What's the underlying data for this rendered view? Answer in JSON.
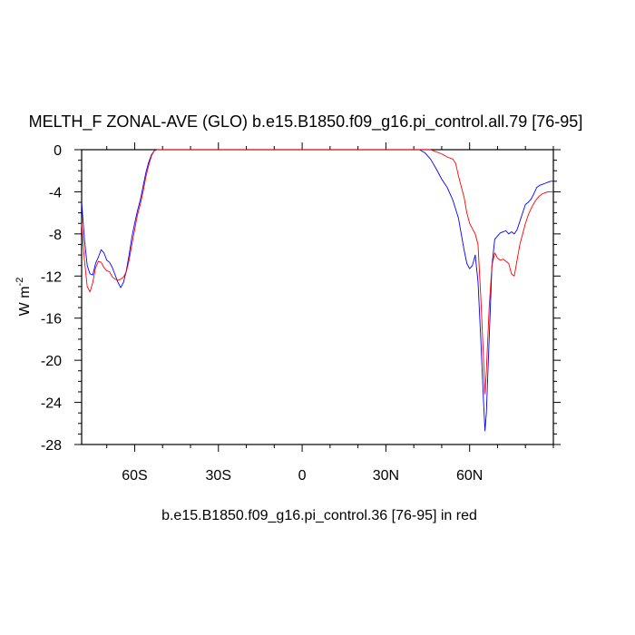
{
  "chart_data": {
    "type": "line",
    "title": "MELTH_F ZONAL-AVE (GLO) b.e15.B1850.f09_g16.pi_control.all.79 [76-95]",
    "xlabel": "b.e15.B1850.f09_g16.pi_control.36 [76-95] in red",
    "ylabel": "W m",
    "ylabel_superscript": "-2",
    "xlim": [
      -79,
      90
    ],
    "ylim": [
      -28,
      0
    ],
    "xticks": [
      {
        "value": -60,
        "label": "60S"
      },
      {
        "value": -30,
        "label": "30S"
      },
      {
        "value": 0,
        "label": "0"
      },
      {
        "value": 30,
        "label": "30N"
      },
      {
        "value": 60,
        "label": "60N"
      }
    ],
    "yticks": [
      {
        "value": 0,
        "label": "0"
      },
      {
        "value": -4,
        "label": "-4"
      },
      {
        "value": -8,
        "label": "-8"
      },
      {
        "value": -12,
        "label": "-12"
      },
      {
        "value": -16,
        "label": "-16"
      },
      {
        "value": -20,
        "label": "-20"
      },
      {
        "value": -24,
        "label": "-24"
      },
      {
        "value": -28,
        "label": "-28"
      }
    ],
    "grid": false,
    "series": [
      {
        "color": "#0000ff",
        "points": [
          [
            -79,
            -5.0
          ],
          [
            -78,
            -8.5
          ],
          [
            -77,
            -11.0
          ],
          [
            -76,
            -11.8
          ],
          [
            -75,
            -11.9
          ],
          [
            -74,
            -10.8
          ],
          [
            -73,
            -10.2
          ],
          [
            -72,
            -9.5
          ],
          [
            -71,
            -9.8
          ],
          [
            -70,
            -10.5
          ],
          [
            -69,
            -10.7
          ],
          [
            -68,
            -11.2
          ],
          [
            -67,
            -11.9
          ],
          [
            -66,
            -12.6
          ],
          [
            -65,
            -13.1
          ],
          [
            -64,
            -12.6
          ],
          [
            -63,
            -11.5
          ],
          [
            -62,
            -10.0
          ],
          [
            -61,
            -8.3
          ],
          [
            -60,
            -7.0
          ],
          [
            -59,
            -5.8
          ],
          [
            -58,
            -4.8
          ],
          [
            -57,
            -3.5
          ],
          [
            -56,
            -2.2
          ],
          [
            -55,
            -1.2
          ],
          [
            -54,
            -0.5
          ],
          [
            -53,
            -0.1
          ],
          [
            -52,
            0.0
          ],
          [
            42,
            0.0
          ],
          [
            44,
            -0.3
          ],
          [
            46,
            -0.9
          ],
          [
            48,
            -1.8
          ],
          [
            50,
            -2.8
          ],
          [
            52,
            -3.6
          ],
          [
            54,
            -4.8
          ],
          [
            56,
            -6.5
          ],
          [
            57,
            -8.0
          ],
          [
            58,
            -9.5
          ],
          [
            59,
            -10.8
          ],
          [
            60,
            -11.3
          ],
          [
            61,
            -11.0
          ],
          [
            62,
            -10.0
          ],
          [
            63,
            -12.5
          ],
          [
            64,
            -18.0
          ],
          [
            65,
            -24.0
          ],
          [
            65.5,
            -26.7
          ],
          [
            66,
            -25.0
          ],
          [
            67,
            -18.0
          ],
          [
            68,
            -11.0
          ],
          [
            69,
            -8.5
          ],
          [
            70,
            -8.2
          ],
          [
            71,
            -7.9
          ],
          [
            72,
            -7.8
          ],
          [
            73,
            -7.7
          ],
          [
            74,
            -8.0
          ],
          [
            75,
            -7.8
          ],
          [
            76,
            -8.0
          ],
          [
            77,
            -7.6
          ],
          [
            78,
            -6.8
          ],
          [
            79,
            -6.0
          ],
          [
            80,
            -5.2
          ],
          [
            81,
            -5.0
          ],
          [
            82,
            -4.7
          ],
          [
            83,
            -4.2
          ],
          [
            84,
            -3.6
          ],
          [
            85,
            -3.4
          ],
          [
            86,
            -3.3
          ],
          [
            87,
            -3.2
          ],
          [
            88,
            -3.1
          ],
          [
            89,
            -3.0
          ],
          [
            90,
            -3.0
          ]
        ]
      },
      {
        "color": "#ff0000",
        "points": [
          [
            -79,
            -7.0
          ],
          [
            -78,
            -10.5
          ],
          [
            -77,
            -13.0
          ],
          [
            -76,
            -13.5
          ],
          [
            -75,
            -12.6
          ],
          [
            -74,
            -11.2
          ],
          [
            -73,
            -10.6
          ],
          [
            -72,
            -10.7
          ],
          [
            -71,
            -11.2
          ],
          [
            -70,
            -11.5
          ],
          [
            -69,
            -11.6
          ],
          [
            -68,
            -12.1
          ],
          [
            -67,
            -12.3
          ],
          [
            -66,
            -12.4
          ],
          [
            -65,
            -12.3
          ],
          [
            -64,
            -12.1
          ],
          [
            -63,
            -11.6
          ],
          [
            -62,
            -10.5
          ],
          [
            -61,
            -9.0
          ],
          [
            -60,
            -7.6
          ],
          [
            -59,
            -6.2
          ],
          [
            -58,
            -5.2
          ],
          [
            -57,
            -4.0
          ],
          [
            -56,
            -2.6
          ],
          [
            -55,
            -1.5
          ],
          [
            -54,
            -0.6
          ],
          [
            -53,
            -0.1
          ],
          [
            -52,
            0.0
          ],
          [
            46,
            0.0
          ],
          [
            48,
            -0.2
          ],
          [
            50,
            -0.4
          ],
          [
            52,
            -0.7
          ],
          [
            54,
            -0.9
          ],
          [
            55,
            -1.3
          ],
          [
            56,
            -2.5
          ],
          [
            57,
            -3.5
          ],
          [
            58,
            -4.5
          ],
          [
            59,
            -6.0
          ],
          [
            60,
            -7.0
          ],
          [
            61,
            -7.5
          ],
          [
            62,
            -8.0
          ],
          [
            63,
            -9.0
          ],
          [
            64,
            -14.0
          ],
          [
            65,
            -20.0
          ],
          [
            65.5,
            -23.2
          ],
          [
            66,
            -21.0
          ],
          [
            67,
            -15.0
          ],
          [
            68,
            -11.0
          ],
          [
            69,
            -9.8
          ],
          [
            70,
            -10.3
          ],
          [
            71,
            -10.5
          ],
          [
            72,
            -10.4
          ],
          [
            73,
            -10.6
          ],
          [
            74,
            -10.8
          ],
          [
            75,
            -11.8
          ],
          [
            76,
            -12.0
          ],
          [
            77,
            -10.5
          ],
          [
            78,
            -9.0
          ],
          [
            79,
            -8.0
          ],
          [
            80,
            -7.0
          ],
          [
            81,
            -6.2
          ],
          [
            82,
            -5.6
          ],
          [
            83,
            -5.1
          ],
          [
            84,
            -4.7
          ],
          [
            85,
            -4.4
          ],
          [
            86,
            -4.2
          ],
          [
            87,
            -4.1
          ],
          [
            88,
            -4.0
          ],
          [
            89,
            -4.0
          ],
          [
            90,
            -4.0
          ]
        ]
      }
    ]
  }
}
